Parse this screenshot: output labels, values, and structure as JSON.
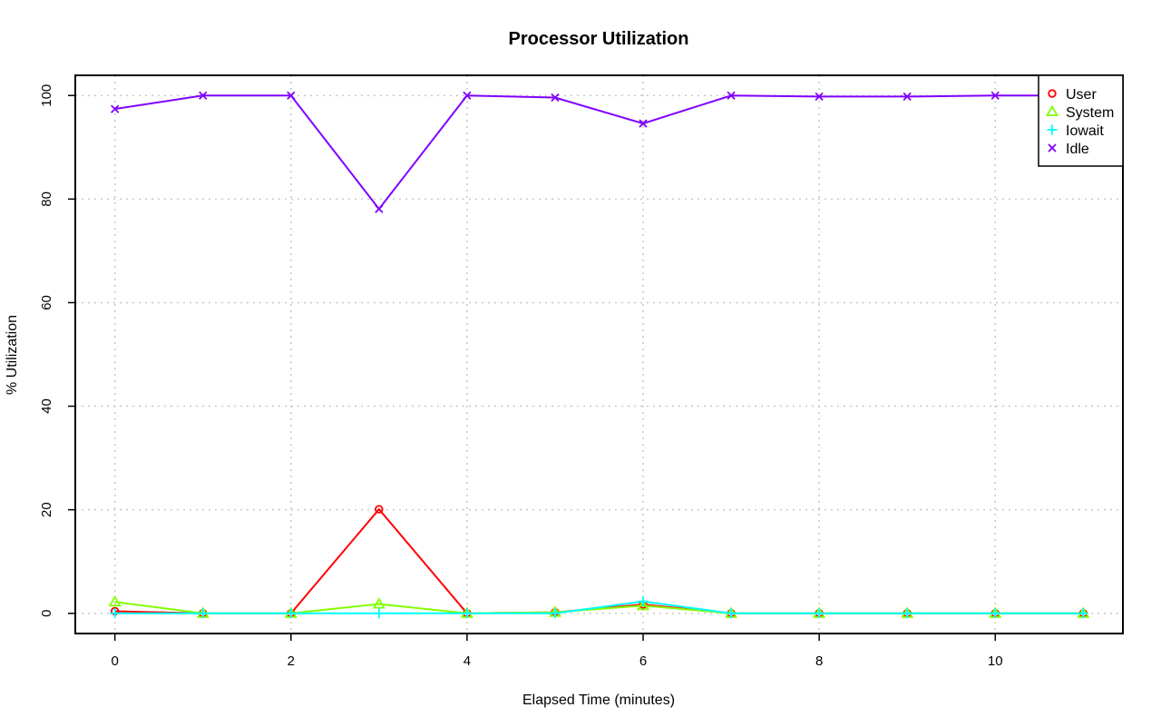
{
  "chart_data": {
    "type": "line",
    "title": "Processor Utilization",
    "xlabel": "Elapsed Time (minutes)",
    "ylabel": "% Utilization",
    "x": [
      0,
      1,
      2,
      3,
      4,
      5,
      6,
      7,
      8,
      9,
      10,
      11
    ],
    "xlim": [
      -0.45,
      11.45
    ],
    "ylim": [
      -3.9,
      103.9
    ],
    "xticks": [
      0,
      2,
      4,
      6,
      8,
      10
    ],
    "yticks": [
      0,
      20,
      40,
      60,
      80,
      100
    ],
    "grid": true,
    "legend_position": "top-right",
    "series": [
      {
        "name": "User",
        "color": "#ff0000",
        "marker": "circle",
        "values": [
          0.4,
          0.0,
          0.0,
          20.1,
          0.0,
          0.2,
          1.7,
          0.0,
          0.0,
          0.0,
          0.0,
          0.0
        ]
      },
      {
        "name": "System",
        "color": "#80ff00",
        "marker": "triangle",
        "values": [
          2.2,
          0.0,
          0.0,
          1.8,
          0.0,
          0.2,
          1.5,
          0.0,
          0.0,
          0.0,
          0.0,
          0.0
        ]
      },
      {
        "name": "Iowait",
        "color": "#00ffff",
        "marker": "plus",
        "values": [
          0.0,
          0.0,
          0.0,
          0.0,
          0.0,
          0.0,
          2.3,
          0.0,
          0.0,
          0.0,
          0.0,
          0.0
        ]
      },
      {
        "name": "Idle",
        "color": "#8000ff",
        "marker": "cross",
        "values": [
          97.4,
          100.0,
          100.0,
          78.1,
          100.0,
          99.6,
          94.6,
          100.0,
          99.8,
          99.8,
          100.0,
          100.0
        ]
      }
    ]
  }
}
